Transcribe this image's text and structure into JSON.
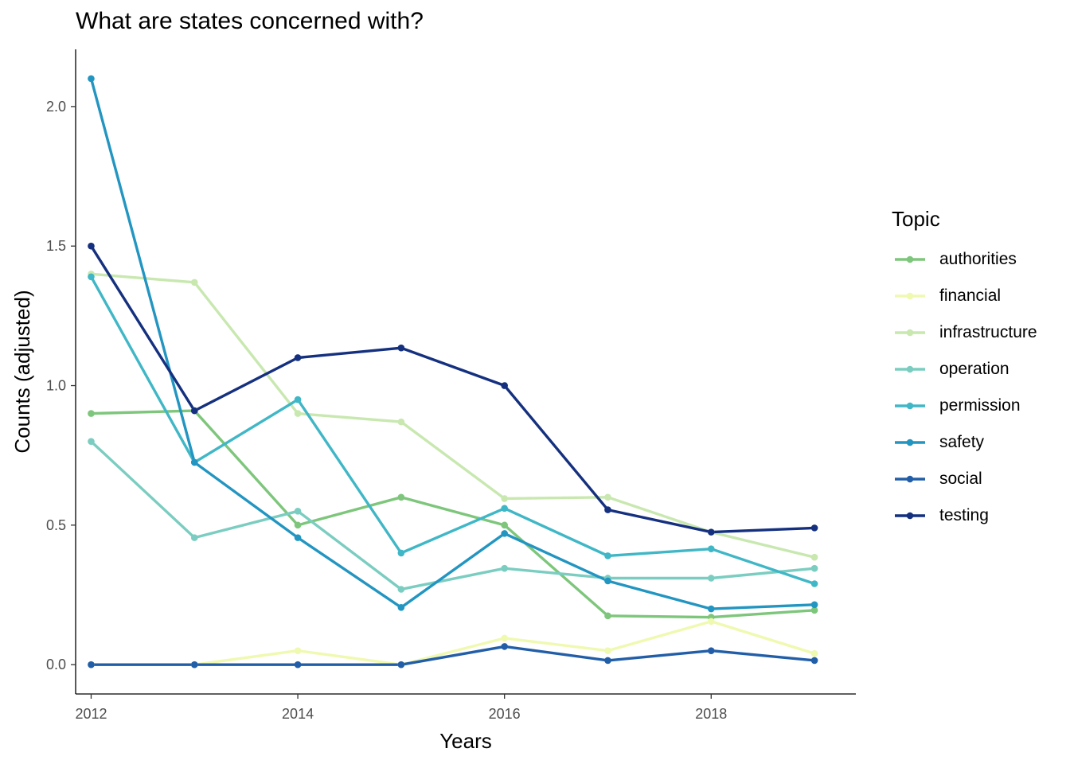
{
  "chart_data": {
    "type": "line",
    "title": "What are states concerned with?",
    "xlabel": "Years",
    "ylabel": "Counts (adjusted)",
    "x": [
      2012,
      2013,
      2014,
      2015,
      2016,
      2017,
      2018,
      2019
    ],
    "xticks": [
      2012,
      2014,
      2016,
      2018
    ],
    "yticks": [
      0.0,
      0.5,
      1.0,
      1.5,
      2.0
    ],
    "ytick_labels": [
      "0.0",
      "0.5",
      "1.0",
      "1.5",
      "2.0"
    ],
    "xlim": [
      2011.85,
      2019.4
    ],
    "ylim": [
      -0.105,
      2.205
    ],
    "grid": false,
    "legend_title": "Topic",
    "legend_position": "right",
    "series": [
      {
        "name": "authorities",
        "color": "#7dc67b",
        "values": [
          0.9,
          0.91,
          0.5,
          0.6,
          0.5,
          0.175,
          0.17,
          0.195
        ]
      },
      {
        "name": "financial",
        "color": "#f0f9b0",
        "values": [
          0.0,
          0.0,
          0.05,
          0.0,
          0.095,
          0.05,
          0.155,
          0.04
        ]
      },
      {
        "name": "infrastructure",
        "color": "#c8e8b0",
        "values": [
          1.4,
          1.37,
          0.9,
          0.87,
          0.595,
          0.6,
          0.475,
          0.385
        ]
      },
      {
        "name": "operation",
        "color": "#7acdc0",
        "values": [
          0.8,
          0.455,
          0.55,
          0.27,
          0.345,
          0.31,
          0.31,
          0.345
        ]
      },
      {
        "name": "permission",
        "color": "#40b7c6",
        "values": [
          1.39,
          0.725,
          0.95,
          0.4,
          0.56,
          0.39,
          0.415,
          0.29
        ]
      },
      {
        "name": "safety",
        "color": "#2295c1",
        "values": [
          2.1,
          0.725,
          0.455,
          0.205,
          0.47,
          0.3,
          0.2,
          0.215
        ]
      },
      {
        "name": "social",
        "color": "#225ea8",
        "values": [
          0.0,
          0.0,
          0.0,
          0.0,
          0.065,
          0.015,
          0.05,
          0.015
        ]
      },
      {
        "name": "testing",
        "color": "#14307f",
        "values": [
          1.5,
          0.91,
          1.1,
          1.135,
          1.0,
          0.555,
          0.475,
          0.49
        ]
      }
    ]
  }
}
